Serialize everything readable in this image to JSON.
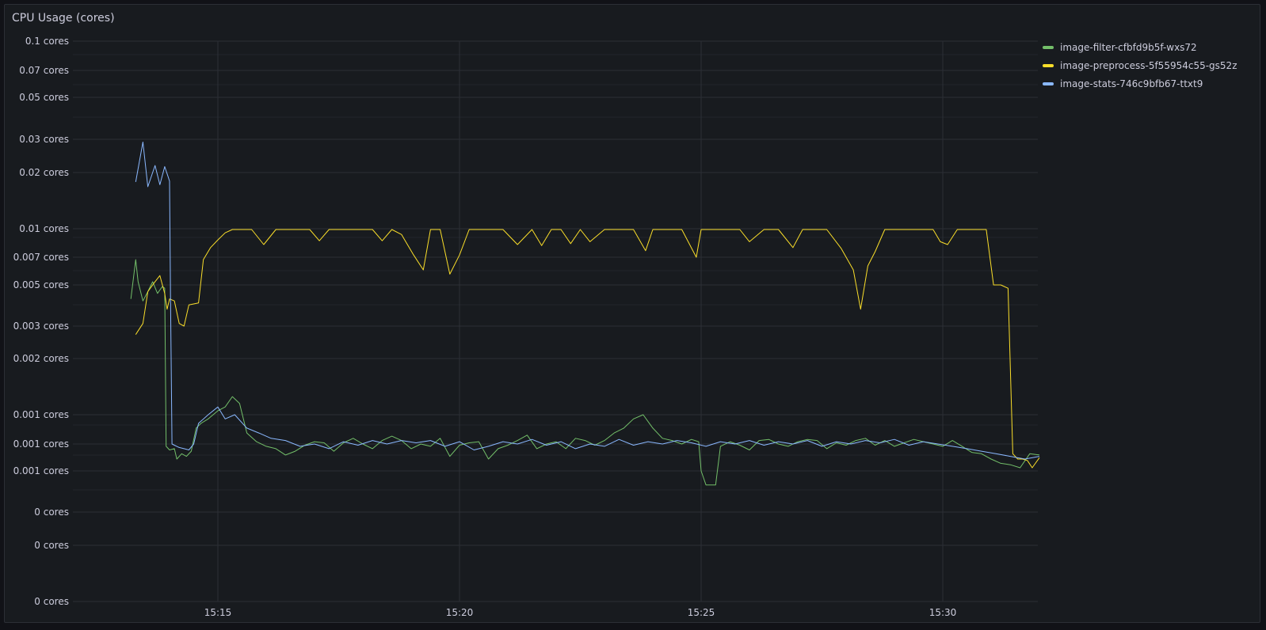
{
  "panel": {
    "title": "CPU Usage (cores)"
  },
  "chart_data": {
    "type": "line",
    "title": "CPU Usage (cores)",
    "yscale": "log",
    "y_ticks": [
      {
        "label": "0.1 cores",
        "value": 0.1
      },
      {
        "label": "0.07 cores",
        "value": 0.07
      },
      {
        "label": "0.05 cores",
        "value": 0.05
      },
      {
        "label": "0.03 cores",
        "value": 0.03
      },
      {
        "label": "0.02 cores",
        "value": 0.02
      },
      {
        "label": "0.01 cores",
        "value": 0.01
      },
      {
        "label": "0.007 cores",
        "value": 0.007
      },
      {
        "label": "0.005 cores",
        "value": 0.005
      },
      {
        "label": "0.003 cores",
        "value": 0.003
      },
      {
        "label": "0.002 cores",
        "value": 0.002
      },
      {
        "label": "0.001 cores",
        "value": 0.001
      },
      {
        "label": "0.001 cores",
        "value": 0.0007
      },
      {
        "label": "0.001 cores",
        "value": 0.0005
      },
      {
        "label": "0 cores",
        "value": 0.0003
      },
      {
        "label": "0 cores",
        "value": 0.0002
      },
      {
        "label": "0 cores",
        "value": 0.0001
      }
    ],
    "x_ticks": [
      "15:15",
      "15:20",
      "15:25",
      "15:30"
    ],
    "x_tick_minutes": [
      15,
      20,
      25,
      30
    ],
    "x_range_minutes": [
      13.0,
      32.0
    ],
    "series": [
      {
        "name": "image-filter-cfbfd9b5f-wxs72",
        "color": "#73bf69",
        "points": [
          [
            13.2,
            0.0042
          ],
          [
            13.3,
            0.0068
          ],
          [
            13.35,
            0.0052
          ],
          [
            13.45,
            0.0041
          ],
          [
            13.55,
            0.0046
          ],
          [
            13.65,
            0.0052
          ],
          [
            13.75,
            0.0045
          ],
          [
            13.85,
            0.0049
          ],
          [
            13.9,
            0.0048
          ],
          [
            13.93,
            0.00068
          ],
          [
            14.0,
            0.00065
          ],
          [
            14.1,
            0.00066
          ],
          [
            14.15,
            0.00058
          ],
          [
            14.25,
            0.00062
          ],
          [
            14.35,
            0.0006
          ],
          [
            14.45,
            0.00064
          ],
          [
            14.55,
            0.00085
          ],
          [
            14.65,
            0.0009
          ],
          [
            14.8,
            0.00095
          ],
          [
            15.0,
            0.00105
          ],
          [
            15.15,
            0.0011
          ],
          [
            15.3,
            0.00125
          ],
          [
            15.45,
            0.00115
          ],
          [
            15.6,
            0.0008
          ],
          [
            15.8,
            0.00072
          ],
          [
            16.0,
            0.00068
          ],
          [
            16.2,
            0.00066
          ],
          [
            16.4,
            0.00061
          ],
          [
            16.6,
            0.00064
          ],
          [
            16.8,
            0.00069
          ],
          [
            17.0,
            0.00072
          ],
          [
            17.2,
            0.00071
          ],
          [
            17.4,
            0.00064
          ],
          [
            17.6,
            0.00071
          ],
          [
            17.8,
            0.00075
          ],
          [
            18.0,
            0.0007
          ],
          [
            18.2,
            0.00066
          ],
          [
            18.4,
            0.00073
          ],
          [
            18.6,
            0.00077
          ],
          [
            18.8,
            0.00073
          ],
          [
            19.0,
            0.00066
          ],
          [
            19.2,
            0.0007
          ],
          [
            19.4,
            0.00068
          ],
          [
            19.6,
            0.00075
          ],
          [
            19.8,
            0.0006
          ],
          [
            20.0,
            0.00069
          ],
          [
            20.2,
            0.00071
          ],
          [
            20.4,
            0.00072
          ],
          [
            20.6,
            0.00058
          ],
          [
            20.8,
            0.00066
          ],
          [
            21.0,
            0.00069
          ],
          [
            21.2,
            0.00073
          ],
          [
            21.4,
            0.00078
          ],
          [
            21.6,
            0.00066
          ],
          [
            21.8,
            0.0007
          ],
          [
            22.0,
            0.00072
          ],
          [
            22.2,
            0.00066
          ],
          [
            22.4,
            0.00075
          ],
          [
            22.6,
            0.00073
          ],
          [
            22.8,
            0.00069
          ],
          [
            23.0,
            0.00073
          ],
          [
            23.2,
            0.0008
          ],
          [
            23.4,
            0.00085
          ],
          [
            23.6,
            0.00095
          ],
          [
            23.8,
            0.001
          ],
          [
            24.0,
            0.00085
          ],
          [
            24.2,
            0.00075
          ],
          [
            24.4,
            0.00073
          ],
          [
            24.6,
            0.0007
          ],
          [
            24.8,
            0.00074
          ],
          [
            24.95,
            0.00072
          ],
          [
            25.0,
            0.0005
          ],
          [
            25.1,
            0.00042
          ],
          [
            25.3,
            0.00042
          ],
          [
            25.4,
            0.00068
          ],
          [
            25.6,
            0.00072
          ],
          [
            25.8,
            0.00069
          ],
          [
            26.0,
            0.00065
          ],
          [
            26.2,
            0.00073
          ],
          [
            26.4,
            0.00074
          ],
          [
            26.6,
            0.0007
          ],
          [
            26.8,
            0.00068
          ],
          [
            27.0,
            0.00072
          ],
          [
            27.2,
            0.00074
          ],
          [
            27.4,
            0.00073
          ],
          [
            27.6,
            0.00066
          ],
          [
            27.8,
            0.00071
          ],
          [
            28.0,
            0.00069
          ],
          [
            28.2,
            0.00073
          ],
          [
            28.4,
            0.00075
          ],
          [
            28.6,
            0.00069
          ],
          [
            28.8,
            0.00073
          ],
          [
            29.0,
            0.00068
          ],
          [
            29.2,
            0.00071
          ],
          [
            29.4,
            0.00074
          ],
          [
            29.6,
            0.00072
          ],
          [
            29.8,
            0.0007
          ],
          [
            30.0,
            0.00068
          ],
          [
            30.2,
            0.00073
          ],
          [
            30.4,
            0.00068
          ],
          [
            30.6,
            0.00063
          ],
          [
            30.8,
            0.00062
          ],
          [
            31.0,
            0.00058
          ],
          [
            31.2,
            0.00055
          ],
          [
            31.4,
            0.00054
          ],
          [
            31.6,
            0.00052
          ],
          [
            31.8,
            0.00062
          ],
          [
            32.0,
            0.00061
          ]
        ]
      },
      {
        "name": "image-preprocess-5f55954c55-gs52z",
        "color": "#fade2a",
        "points": [
          [
            13.3,
            0.0027
          ],
          [
            13.45,
            0.0031
          ],
          [
            13.55,
            0.0046
          ],
          [
            13.7,
            0.0052
          ],
          [
            13.8,
            0.0056
          ],
          [
            13.9,
            0.0045
          ],
          [
            13.95,
            0.0037
          ],
          [
            14.0,
            0.0042
          ],
          [
            14.1,
            0.0041
          ],
          [
            14.2,
            0.0031
          ],
          [
            14.3,
            0.003
          ],
          [
            14.4,
            0.0039
          ],
          [
            14.6,
            0.004
          ],
          [
            14.7,
            0.0068
          ],
          [
            14.85,
            0.0079
          ],
          [
            15.0,
            0.0087
          ],
          [
            15.15,
            0.0095
          ],
          [
            15.3,
            0.0099
          ],
          [
            15.5,
            0.0099
          ],
          [
            15.7,
            0.0099
          ],
          [
            15.95,
            0.0082
          ],
          [
            16.2,
            0.0099
          ],
          [
            16.6,
            0.0099
          ],
          [
            16.9,
            0.0099
          ],
          [
            17.1,
            0.0086
          ],
          [
            17.3,
            0.0099
          ],
          [
            17.5,
            0.0099
          ],
          [
            17.8,
            0.0099
          ],
          [
            18.2,
            0.0099
          ],
          [
            18.4,
            0.0086
          ],
          [
            18.6,
            0.0099
          ],
          [
            18.8,
            0.0093
          ],
          [
            19.05,
            0.0072
          ],
          [
            19.25,
            0.006
          ],
          [
            19.4,
            0.0099
          ],
          [
            19.6,
            0.0099
          ],
          [
            19.8,
            0.0057
          ],
          [
            20.0,
            0.0072
          ],
          [
            20.2,
            0.0099
          ],
          [
            20.5,
            0.0099
          ],
          [
            20.9,
            0.0099
          ],
          [
            21.2,
            0.0082
          ],
          [
            21.5,
            0.0099
          ],
          [
            21.7,
            0.0081
          ],
          [
            21.9,
            0.0099
          ],
          [
            22.1,
            0.0099
          ],
          [
            22.3,
            0.0083
          ],
          [
            22.5,
            0.0099
          ],
          [
            22.7,
            0.0085
          ],
          [
            23.0,
            0.0099
          ],
          [
            23.3,
            0.0099
          ],
          [
            23.6,
            0.0099
          ],
          [
            23.85,
            0.0076
          ],
          [
            24.0,
            0.0099
          ],
          [
            24.3,
            0.0099
          ],
          [
            24.6,
            0.0099
          ],
          [
            24.9,
            0.007
          ],
          [
            25.0,
            0.0099
          ],
          [
            25.4,
            0.0099
          ],
          [
            25.8,
            0.0099
          ],
          [
            26.0,
            0.0085
          ],
          [
            26.3,
            0.0099
          ],
          [
            26.6,
            0.0099
          ],
          [
            26.9,
            0.0079
          ],
          [
            27.1,
            0.0099
          ],
          [
            27.4,
            0.0099
          ],
          [
            27.6,
            0.0099
          ],
          [
            27.9,
            0.0078
          ],
          [
            28.15,
            0.006
          ],
          [
            28.3,
            0.0037
          ],
          [
            28.45,
            0.0063
          ],
          [
            28.6,
            0.0075
          ],
          [
            28.8,
            0.0099
          ],
          [
            29.2,
            0.0099
          ],
          [
            29.55,
            0.0099
          ],
          [
            29.8,
            0.0099
          ],
          [
            29.95,
            0.0085
          ],
          [
            30.1,
            0.0082
          ],
          [
            30.3,
            0.0099
          ],
          [
            30.6,
            0.0099
          ],
          [
            30.9,
            0.0099
          ],
          [
            31.05,
            0.005
          ],
          [
            31.2,
            0.005
          ],
          [
            31.35,
            0.0048
          ],
          [
            31.45,
            0.00062
          ],
          [
            31.55,
            0.00058
          ],
          [
            31.65,
            0.00058
          ],
          [
            31.75,
            0.00057
          ],
          [
            31.85,
            0.00052
          ],
          [
            32.0,
            0.00059
          ]
        ]
      },
      {
        "name": "image-stats-746c9bfb67-ttxt9",
        "color": "#8ab8ff",
        "points": [
          [
            13.3,
            0.0178
          ],
          [
            13.45,
            0.029
          ],
          [
            13.55,
            0.0168
          ],
          [
            13.7,
            0.0218
          ],
          [
            13.8,
            0.0172
          ],
          [
            13.9,
            0.0215
          ],
          [
            13.97,
            0.019
          ],
          [
            14.0,
            0.018
          ],
          [
            14.02,
            0.0044
          ],
          [
            14.05,
            0.0007
          ],
          [
            14.1,
            0.00069
          ],
          [
            14.2,
            0.00067
          ],
          [
            14.3,
            0.00066
          ],
          [
            14.4,
            0.00065
          ],
          [
            14.5,
            0.0007
          ],
          [
            14.6,
            0.0009
          ],
          [
            14.8,
            0.001
          ],
          [
            15.0,
            0.0011
          ],
          [
            15.15,
            0.00095
          ],
          [
            15.35,
            0.001
          ],
          [
            15.6,
            0.00085
          ],
          [
            15.85,
            0.0008
          ],
          [
            16.1,
            0.00075
          ],
          [
            16.4,
            0.00073
          ],
          [
            16.7,
            0.00068
          ],
          [
            17.0,
            0.0007
          ],
          [
            17.3,
            0.00066
          ],
          [
            17.6,
            0.00072
          ],
          [
            17.9,
            0.00069
          ],
          [
            18.2,
            0.00073
          ],
          [
            18.5,
            0.0007
          ],
          [
            18.8,
            0.00073
          ],
          [
            19.1,
            0.00071
          ],
          [
            19.4,
            0.00073
          ],
          [
            19.7,
            0.00068
          ],
          [
            20.0,
            0.00072
          ],
          [
            20.3,
            0.00065
          ],
          [
            20.6,
            0.00068
          ],
          [
            20.9,
            0.00072
          ],
          [
            21.2,
            0.0007
          ],
          [
            21.5,
            0.00074
          ],
          [
            21.8,
            0.00069
          ],
          [
            22.1,
            0.00072
          ],
          [
            22.4,
            0.00066
          ],
          [
            22.7,
            0.0007
          ],
          [
            23.0,
            0.00068
          ],
          [
            23.3,
            0.00074
          ],
          [
            23.6,
            0.00069
          ],
          [
            23.9,
            0.00072
          ],
          [
            24.2,
            0.0007
          ],
          [
            24.5,
            0.00073
          ],
          [
            24.8,
            0.00071
          ],
          [
            25.1,
            0.00068
          ],
          [
            25.4,
            0.00072
          ],
          [
            25.7,
            0.0007
          ],
          [
            26.0,
            0.00073
          ],
          [
            26.3,
            0.00069
          ],
          [
            26.6,
            0.00072
          ],
          [
            26.9,
            0.0007
          ],
          [
            27.2,
            0.00073
          ],
          [
            27.5,
            0.00068
          ],
          [
            27.8,
            0.00072
          ],
          [
            28.1,
            0.0007
          ],
          [
            28.4,
            0.00073
          ],
          [
            28.7,
            0.00071
          ],
          [
            29.0,
            0.00074
          ],
          [
            29.3,
            0.00069
          ],
          [
            29.6,
            0.00072
          ],
          [
            29.9,
            0.0007
          ],
          [
            30.2,
            0.00068
          ],
          [
            30.5,
            0.00066
          ],
          [
            30.8,
            0.00064
          ],
          [
            31.1,
            0.00062
          ],
          [
            31.4,
            0.0006
          ],
          [
            31.7,
            0.00058
          ],
          [
            32.0,
            0.0006
          ]
        ]
      }
    ]
  }
}
